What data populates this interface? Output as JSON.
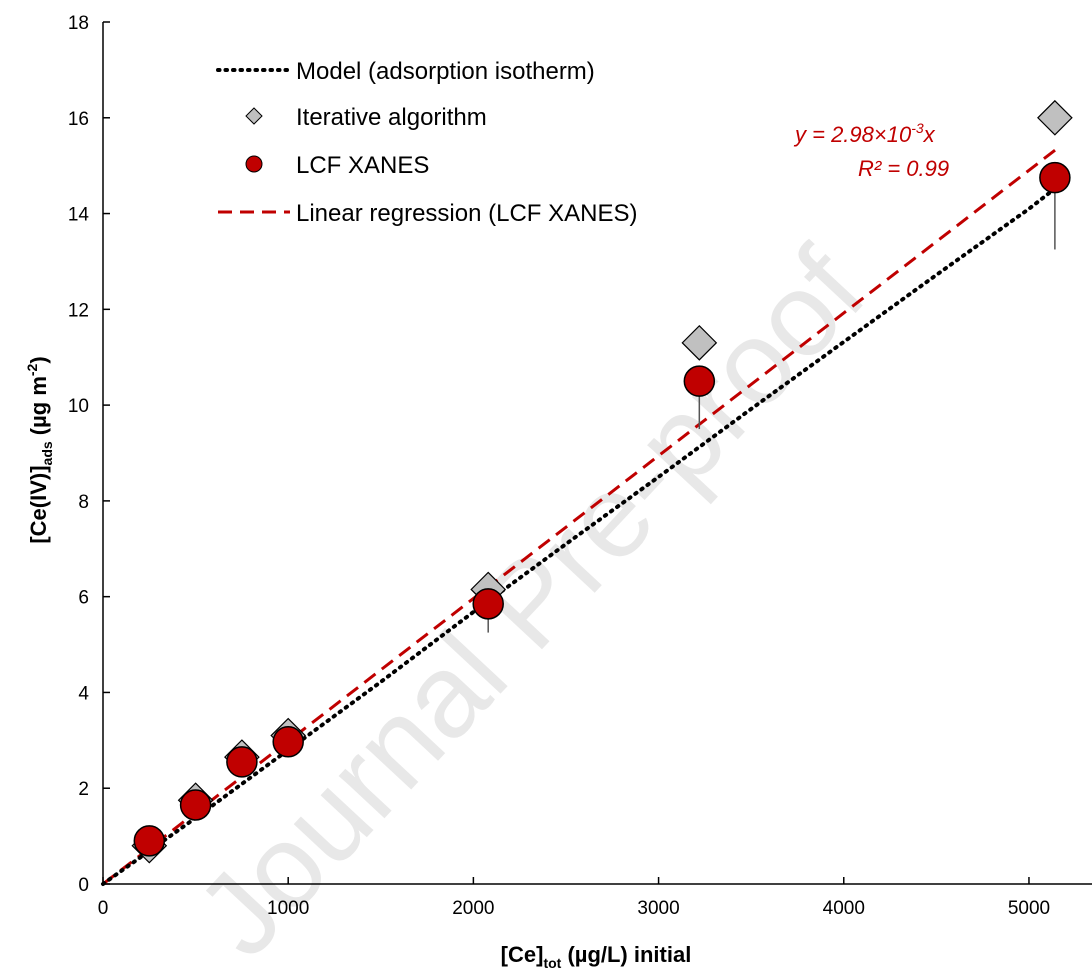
{
  "watermark": "Journal Pre-proof",
  "chart_data": {
    "type": "scatter",
    "xlabel": {
      "main": "[Ce]",
      "sub": "tot",
      "rest": " (µg/L) initial"
    },
    "ylabel": {
      "main": "[Ce(IV)]",
      "sub": "ads",
      "rest": "  (µg m",
      "sup": "-2",
      "end": ")"
    },
    "xlim": [
      0,
      5200
    ],
    "ylim": [
      0,
      18
    ],
    "x_ticks": [
      0,
      1000,
      2000,
      3000,
      4000,
      5000
    ],
    "y_ticks": [
      0,
      2,
      4,
      6,
      8,
      10,
      12,
      14,
      16,
      18
    ],
    "grid": false,
    "legend_position": "top-left",
    "series": [
      {
        "name": "Model (adsorption isotherm)",
        "kind": "line",
        "style": "dotted",
        "color": "#000000",
        "x": [
          0,
          500,
          1000,
          1500,
          2000,
          2500,
          3000,
          3500,
          4000,
          4500,
          5000,
          5150
        ],
        "y": [
          0,
          1.38,
          2.8,
          4.22,
          5.68,
          7.1,
          8.5,
          9.92,
          11.32,
          12.72,
          14.1,
          14.55
        ]
      },
      {
        "name": "Iterative algorithm",
        "kind": "marker",
        "marker": "diamond",
        "color": "#c0c0c0",
        "x": [
          250,
          500,
          750,
          1000,
          2080,
          3220,
          5140
        ],
        "y": [
          0.8,
          1.75,
          2.65,
          3.1,
          6.15,
          11.3,
          16.0
        ]
      },
      {
        "name": "LCF XANES",
        "kind": "marker",
        "marker": "circle",
        "color": "#c00000",
        "x": [
          250,
          500,
          750,
          1000,
          2080,
          3220,
          5140
        ],
        "y": [
          0.9,
          1.65,
          2.55,
          2.97,
          5.85,
          10.5,
          14.75
        ],
        "err_low": [
          0.1,
          0.2,
          0.3,
          0.3,
          0.6,
          1.0,
          1.5
        ]
      },
      {
        "name": "Linear regression (LCF XANES)",
        "kind": "line",
        "style": "dashed",
        "color": "#c00000",
        "x": [
          0,
          5150
        ],
        "y": [
          0,
          15.35
        ]
      }
    ],
    "annotation": {
      "line1_pre": "y = 2.98×10",
      "line1_sup": "-3",
      "line1_post": "x",
      "line2": "R² = 0.99",
      "color": "#c00000"
    }
  }
}
